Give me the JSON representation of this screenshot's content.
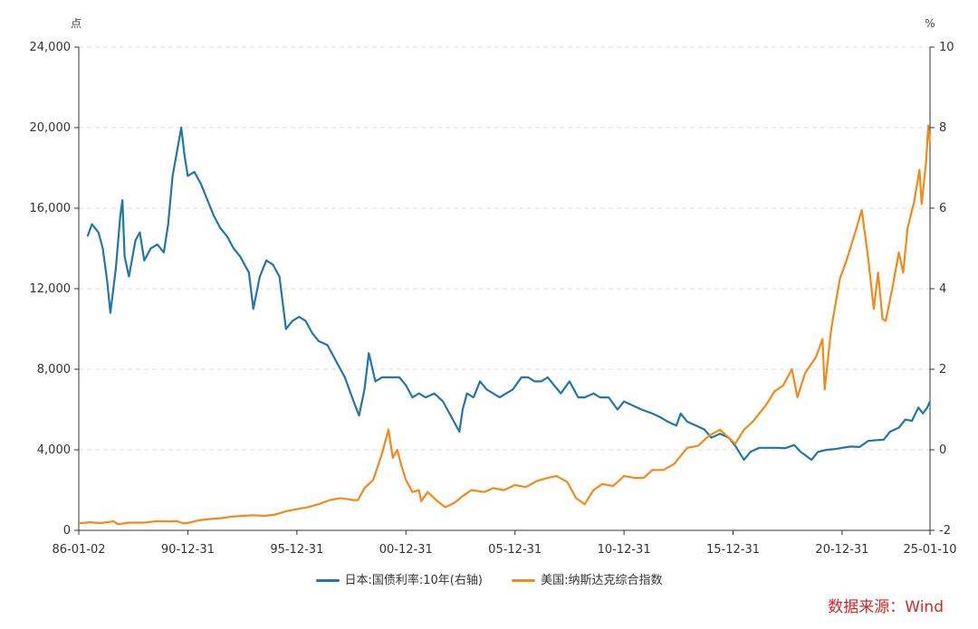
{
  "chart_data": {
    "type": "line",
    "left_axis_unit": "点",
    "right_axis_unit": "%",
    "left_axis": {
      "min": 0,
      "max": 24000,
      "ticks": [
        0,
        4000,
        8000,
        12000,
        16000,
        20000,
        24000
      ],
      "tick_labels": [
        "0",
        "4,000",
        "8,000",
        "12,000",
        "16,000",
        "20,000",
        "24,000"
      ]
    },
    "right_axis": {
      "min": -2,
      "max": 10,
      "ticks": [
        -2,
        0,
        2,
        4,
        6,
        8,
        10
      ],
      "tick_labels": [
        "-2",
        "0",
        "2",
        "4",
        "6",
        "8",
        "10"
      ]
    },
    "x_tick_labels": [
      "86-01-02",
      "90-12-31",
      "95-12-31",
      "00-12-31",
      "05-12-31",
      "10-12-31",
      "15-12-31",
      "20-12-31",
      "25-01-10"
    ],
    "x_tick_years": [
      1986.0,
      1991.0,
      1996.0,
      2001.0,
      2006.0,
      2011.0,
      2016.0,
      2021.0,
      2025.03
    ],
    "x_range": [
      1986.0,
      2025.03
    ],
    "grid": true,
    "legend_position": "bottom",
    "series": [
      {
        "name": "日本:国债利率:10年(右轴)",
        "axis": "right",
        "color": "#2277a6",
        "points": [
          [
            1986.4,
            5.3
          ],
          [
            1986.6,
            5.6
          ],
          [
            1986.9,
            5.4
          ],
          [
            1987.1,
            5.0
          ],
          [
            1987.3,
            4.2
          ],
          [
            1987.45,
            3.4
          ],
          [
            1987.7,
            4.5
          ],
          [
            1987.9,
            5.8
          ],
          [
            1988.0,
            6.2
          ],
          [
            1988.1,
            4.8
          ],
          [
            1988.3,
            4.3
          ],
          [
            1988.6,
            5.2
          ],
          [
            1988.8,
            5.4
          ],
          [
            1989.0,
            4.7
          ],
          [
            1989.3,
            5.0
          ],
          [
            1989.6,
            5.1
          ],
          [
            1989.9,
            4.9
          ],
          [
            1990.1,
            5.6
          ],
          [
            1990.3,
            6.8
          ],
          [
            1990.5,
            7.4
          ],
          [
            1990.7,
            8.0
          ],
          [
            1990.85,
            7.3
          ],
          [
            1991.0,
            6.8
          ],
          [
            1991.3,
            6.9
          ],
          [
            1991.6,
            6.6
          ],
          [
            1991.9,
            6.2
          ],
          [
            1992.2,
            5.8
          ],
          [
            1992.5,
            5.5
          ],
          [
            1992.8,
            5.3
          ],
          [
            1993.1,
            5.0
          ],
          [
            1993.4,
            4.8
          ],
          [
            1993.8,
            4.4
          ],
          [
            1994.0,
            3.5
          ],
          [
            1994.3,
            4.3
          ],
          [
            1994.6,
            4.7
          ],
          [
            1994.9,
            4.6
          ],
          [
            1995.2,
            4.3
          ],
          [
            1995.5,
            3.0
          ],
          [
            1995.8,
            3.2
          ],
          [
            1996.1,
            3.3
          ],
          [
            1996.4,
            3.2
          ],
          [
            1996.7,
            2.9
          ],
          [
            1997.0,
            2.7
          ],
          [
            1997.4,
            2.6
          ],
          [
            1997.8,
            2.2
          ],
          [
            1998.2,
            1.8
          ],
          [
            1998.6,
            1.2
          ],
          [
            1998.85,
            0.85
          ],
          [
            1999.1,
            1.5
          ],
          [
            1999.3,
            2.4
          ],
          [
            1999.6,
            1.7
          ],
          [
            1999.9,
            1.8
          ],
          [
            2000.3,
            1.8
          ],
          [
            2000.7,
            1.8
          ],
          [
            2001.0,
            1.6
          ],
          [
            2001.3,
            1.3
          ],
          [
            2001.6,
            1.4
          ],
          [
            2001.9,
            1.3
          ],
          [
            2002.3,
            1.4
          ],
          [
            2002.7,
            1.2
          ],
          [
            2003.0,
            0.9
          ],
          [
            2003.3,
            0.6
          ],
          [
            2003.45,
            0.45
          ],
          [
            2003.6,
            1.0
          ],
          [
            2003.8,
            1.4
          ],
          [
            2004.1,
            1.3
          ],
          [
            2004.4,
            1.7
          ],
          [
            2004.7,
            1.5
          ],
          [
            2005.0,
            1.4
          ],
          [
            2005.3,
            1.3
          ],
          [
            2005.6,
            1.4
          ],
          [
            2005.9,
            1.5
          ],
          [
            2006.3,
            1.8
          ],
          [
            2006.6,
            1.8
          ],
          [
            2006.9,
            1.7
          ],
          [
            2007.2,
            1.7
          ],
          [
            2007.5,
            1.8
          ],
          [
            2007.8,
            1.6
          ],
          [
            2008.1,
            1.4
          ],
          [
            2008.5,
            1.7
          ],
          [
            2008.9,
            1.3
          ],
          [
            2009.2,
            1.3
          ],
          [
            2009.6,
            1.4
          ],
          [
            2009.9,
            1.3
          ],
          [
            2010.3,
            1.3
          ],
          [
            2010.7,
            1.0
          ],
          [
            2011.0,
            1.2
          ],
          [
            2011.4,
            1.1
          ],
          [
            2011.8,
            1.0
          ],
          [
            2012.3,
            0.9
          ],
          [
            2012.7,
            0.8
          ],
          [
            2013.0,
            0.7
          ],
          [
            2013.4,
            0.6
          ],
          [
            2013.6,
            0.9
          ],
          [
            2013.9,
            0.7
          ],
          [
            2014.3,
            0.6
          ],
          [
            2014.7,
            0.5
          ],
          [
            2015.0,
            0.3
          ],
          [
            2015.4,
            0.4
          ],
          [
            2015.8,
            0.3
          ],
          [
            2016.1,
            0.1
          ],
          [
            2016.5,
            -0.25
          ],
          [
            2016.8,
            -0.05
          ],
          [
            2017.2,
            0.05
          ],
          [
            2017.6,
            0.05
          ],
          [
            2018.0,
            0.05
          ],
          [
            2018.4,
            0.04
          ],
          [
            2018.8,
            0.12
          ],
          [
            2019.1,
            -0.05
          ],
          [
            2019.6,
            -0.25
          ],
          [
            2019.9,
            -0.05
          ],
          [
            2020.3,
            0.0
          ],
          [
            2020.7,
            0.02
          ],
          [
            2021.0,
            0.05
          ],
          [
            2021.4,
            0.08
          ],
          [
            2021.8,
            0.07
          ],
          [
            2022.2,
            0.22
          ],
          [
            2022.6,
            0.24
          ],
          [
            2022.9,
            0.25
          ],
          [
            2023.2,
            0.45
          ],
          [
            2023.6,
            0.55
          ],
          [
            2023.9,
            0.75
          ],
          [
            2024.2,
            0.72
          ],
          [
            2024.5,
            1.05
          ],
          [
            2024.7,
            0.9
          ],
          [
            2024.9,
            1.05
          ],
          [
            2025.03,
            1.2
          ]
        ]
      },
      {
        "name": "美国:纳斯达克综合指数",
        "axis": "left",
        "color": "#f28a1a",
        "points": [
          [
            1986.0,
            350
          ],
          [
            1986.5,
            400
          ],
          [
            1987.0,
            360
          ],
          [
            1987.6,
            450
          ],
          [
            1987.8,
            300
          ],
          [
            1988.3,
            380
          ],
          [
            1989.0,
            380
          ],
          [
            1989.6,
            460
          ],
          [
            1990.2,
            440
          ],
          [
            1990.5,
            460
          ],
          [
            1990.8,
            340
          ],
          [
            1991.0,
            370
          ],
          [
            1991.5,
            500
          ],
          [
            1992.0,
            560
          ],
          [
            1992.5,
            600
          ],
          [
            1993.0,
            680
          ],
          [
            1993.5,
            720
          ],
          [
            1994.0,
            750
          ],
          [
            1994.5,
            720
          ],
          [
            1995.0,
            780
          ],
          [
            1995.5,
            950
          ],
          [
            1996.0,
            1050
          ],
          [
            1996.5,
            1150
          ],
          [
            1997.0,
            1300
          ],
          [
            1997.5,
            1500
          ],
          [
            1998.0,
            1600
          ],
          [
            1998.6,
            1500
          ],
          [
            1998.8,
            1500
          ],
          [
            1999.1,
            2100
          ],
          [
            1999.5,
            2500
          ],
          [
            1999.9,
            3800
          ],
          [
            2000.2,
            5000
          ],
          [
            2000.4,
            3600
          ],
          [
            2000.6,
            4000
          ],
          [
            2000.8,
            3200
          ],
          [
            2001.0,
            2500
          ],
          [
            2001.3,
            1900
          ],
          [
            2001.6,
            2000
          ],
          [
            2001.7,
            1450
          ],
          [
            2002.0,
            1900
          ],
          [
            2002.5,
            1400
          ],
          [
            2002.8,
            1150
          ],
          [
            2003.2,
            1350
          ],
          [
            2003.6,
            1700
          ],
          [
            2004.0,
            2000
          ],
          [
            2004.6,
            1900
          ],
          [
            2005.0,
            2100
          ],
          [
            2005.5,
            2000
          ],
          [
            2006.0,
            2250
          ],
          [
            2006.5,
            2150
          ],
          [
            2007.0,
            2450
          ],
          [
            2007.5,
            2600
          ],
          [
            2007.9,
            2700
          ],
          [
            2008.4,
            2400
          ],
          [
            2008.8,
            1600
          ],
          [
            2009.2,
            1300
          ],
          [
            2009.6,
            2000
          ],
          [
            2010.0,
            2300
          ],
          [
            2010.5,
            2200
          ],
          [
            2011.0,
            2700
          ],
          [
            2011.5,
            2600
          ],
          [
            2011.9,
            2600
          ],
          [
            2012.3,
            3000
          ],
          [
            2012.8,
            3000
          ],
          [
            2013.3,
            3300
          ],
          [
            2013.9,
            4100
          ],
          [
            2014.4,
            4200
          ],
          [
            2014.9,
            4700
          ],
          [
            2015.4,
            5000
          ],
          [
            2015.7,
            4700
          ],
          [
            2016.1,
            4300
          ],
          [
            2016.5,
            5000
          ],
          [
            2016.9,
            5400
          ],
          [
            2017.5,
            6200
          ],
          [
            2017.9,
            6900
          ],
          [
            2018.3,
            7200
          ],
          [
            2018.7,
            8000
          ],
          [
            2018.95,
            6600
          ],
          [
            2019.3,
            7800
          ],
          [
            2019.8,
            8600
          ],
          [
            2020.1,
            9500
          ],
          [
            2020.2,
            7000
          ],
          [
            2020.5,
            10000
          ],
          [
            2020.9,
            12500
          ],
          [
            2021.2,
            13400
          ],
          [
            2021.6,
            14800
          ],
          [
            2021.9,
            15900
          ],
          [
            2022.2,
            13500
          ],
          [
            2022.45,
            11000
          ],
          [
            2022.65,
            12800
          ],
          [
            2022.85,
            10500
          ],
          [
            2023.0,
            10400
          ],
          [
            2023.3,
            12000
          ],
          [
            2023.6,
            13800
          ],
          [
            2023.8,
            12800
          ],
          [
            2024.0,
            15000
          ],
          [
            2024.3,
            16300
          ],
          [
            2024.55,
            17900
          ],
          [
            2024.65,
            16200
          ],
          [
            2024.85,
            18300
          ],
          [
            2024.95,
            20100
          ],
          [
            2025.03,
            19200
          ]
        ]
      }
    ]
  },
  "legend": {
    "jgb_label": "日本:国债利率:10年(右轴)",
    "nasdaq_label": "美国:纳斯达克综合指数"
  },
  "source_text": "数据来源：Wind"
}
